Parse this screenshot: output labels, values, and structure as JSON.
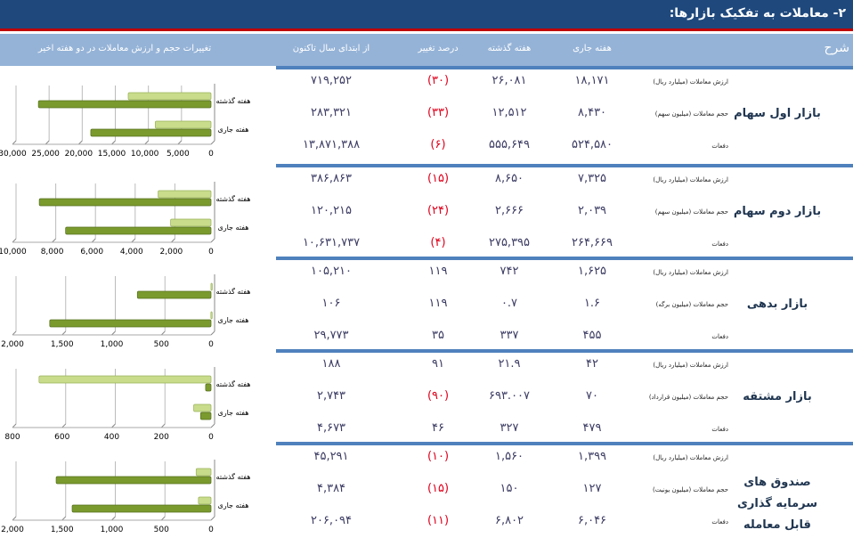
{
  "title": "۲- معاملات به تفکیک بازارها:",
  "columns": {
    "description": "شرح",
    "current_week": "هفته جاری",
    "last_week": "هفته گذشته",
    "pct_change": "درصد تغییر",
    "ytd": "از ابتدای سال تاکنون",
    "chart": "تغییرات حجم و ارزش معاملات در دو هفته اخیر"
  },
  "sections": [
    {
      "market": "بازار اول سهام",
      "rows": [
        {
          "label": "ارزش معاملات (میلیارد ریال)",
          "current": "۱۸,۱۷۱",
          "last": "۲۶,۰۸۱",
          "pct": "(۳۰)",
          "pct_neg": true,
          "ytd": "۷۱۹,۲۵۲"
        },
        {
          "label": "حجم معاملات (میلیون سهم)",
          "current": "۸,۴۳۰",
          "last": "۱۲,۵۱۲",
          "pct": "(۳۳)",
          "pct_neg": true,
          "ytd": "۲۸۳,۳۲۱"
        },
        {
          "label": "دفعات",
          "current": "۵۲۴,۵۸۰",
          "last": "۵۵۵,۶۴۹",
          "pct": "(۶)",
          "pct_neg": true,
          "ytd": "۱۳,۸۷۱,۳۸۸"
        }
      ]
    },
    {
      "market": "بازار دوم سهام",
      "rows": [
        {
          "label": "ارزش معاملات (میلیارد ریال)",
          "current": "۷,۳۲۵",
          "last": "۸,۶۵۰",
          "pct": "(۱۵)",
          "pct_neg": true,
          "ytd": "۳۸۶,۸۶۳"
        },
        {
          "label": "حجم معاملات (میلیون سهم)",
          "current": "۲,۰۳۹",
          "last": "۲,۶۶۶",
          "pct": "(۲۴)",
          "pct_neg": true,
          "ytd": "۱۲۰,۲۱۵"
        },
        {
          "label": "دفعات",
          "current": "۲۶۴,۶۶۹",
          "last": "۲۷۵,۳۹۵",
          "pct": "(۴)",
          "pct_neg": true,
          "ytd": "۱۰,۶۳۱,۷۳۷"
        }
      ]
    },
    {
      "market": "بازار بدهی",
      "rows": [
        {
          "label": "ارزش معاملات (میلیارد ریال)",
          "current": "۱,۶۲۵",
          "last": "۷۴۲",
          "pct": "۱۱۹",
          "pct_neg": false,
          "ytd": "۱۰۵,۲۱۰"
        },
        {
          "label": "حجم معاملات (میلیون برگه)",
          "current": "۱.۶",
          "last": "۰.۷",
          "pct": "۱۱۹",
          "pct_neg": false,
          "ytd": "۱۰۶"
        },
        {
          "label": "دفعات",
          "current": "۴۵۵",
          "last": "۳۳۷",
          "pct": "۳۵",
          "pct_neg": false,
          "ytd": "۲۹,۷۷۳"
        }
      ]
    },
    {
      "market": "بازار مشتقه",
      "rows": [
        {
          "label": "ارزش معاملات (میلیارد ریال)",
          "current": "۴۲",
          "last": "۲۱.۹",
          "pct": "۹۱",
          "pct_neg": false,
          "ytd": "۱۸۸"
        },
        {
          "label": "حجم معاملات (میلیون قرارداد)",
          "current": "۷۰",
          "last": "۶۹۳.۰۰۷",
          "pct": "(۹۰)",
          "pct_neg": true,
          "ytd": "۲,۷۴۳"
        },
        {
          "label": "دفعات",
          "current": "۴۷۹",
          "last": "۳۲۷",
          "pct": "۴۶",
          "pct_neg": false,
          "ytd": "۴,۶۷۳"
        }
      ]
    },
    {
      "market": "صندوق های سرمایه گذاری قابل معامله",
      "rows": [
        {
          "label": "ارزش معاملات (میلیارد ریال)",
          "current": "۱,۳۹۹",
          "last": "۱,۵۶۰",
          "pct": "(۱۰)",
          "pct_neg": true,
          "ytd": "۴۵,۲۹۱"
        },
        {
          "label": "حجم معاملات (میلیون یونیت)",
          "current": "۱۲۷",
          "last": "۱۵۰",
          "pct": "(۱۵)",
          "pct_neg": true,
          "ytd": "۴,۳۸۴"
        },
        {
          "label": "دفعات",
          "current": "۶,۰۴۶",
          "last": "۶,۸۰۲",
          "pct": "(۱۱)",
          "pct_neg": true,
          "ytd": "۲۰۶,۰۹۴"
        }
      ]
    }
  ],
  "colors": {
    "title_bg": "#1f497d",
    "header_bg": "#95b3d7",
    "separator": "#4f81bd",
    "accent_red": "#c00000",
    "bar_dark": "#7a9a2e",
    "bar_light": "#c8dc8c"
  },
  "chart_data": [
    {
      "type": "bar",
      "orientation": "horizontal",
      "categories": [
        "هفته گذشته",
        "هفته جاری"
      ],
      "series": [
        {
          "name": "volume",
          "values": [
            12512,
            8430
          ]
        },
        {
          "name": "value",
          "values": [
            26081,
            18171
          ]
        }
      ],
      "xlim": [
        0,
        30000
      ],
      "ticks": [
        "0",
        "5,000",
        "10,000",
        "15,000",
        "20,000",
        "25,000",
        "30,000"
      ]
    },
    {
      "type": "bar",
      "orientation": "horizontal",
      "categories": [
        "هفته گذشته",
        "هفته جاری"
      ],
      "series": [
        {
          "name": "volume",
          "values": [
            2666,
            2039
          ]
        },
        {
          "name": "value",
          "values": [
            8650,
            7325
          ]
        }
      ],
      "xlim": [
        0,
        10000
      ],
      "ticks": [
        "0",
        "2,000",
        "4,000",
        "6,000",
        "8,000",
        "10,000"
      ]
    },
    {
      "type": "bar",
      "orientation": "horizontal",
      "categories": [
        "هفته گذشته",
        "هفته جاری"
      ],
      "series": [
        {
          "name": "volume",
          "values": [
            0.7,
            1.6
          ]
        },
        {
          "name": "value",
          "values": [
            742,
            1625
          ]
        }
      ],
      "xlim": [
        0,
        2000
      ],
      "ticks": [
        "0",
        "500",
        "1,000",
        "1,500",
        "2,000"
      ]
    },
    {
      "type": "bar",
      "orientation": "horizontal",
      "categories": [
        "هفته گذشته",
        "هفته جاری"
      ],
      "series": [
        {
          "name": "volume",
          "values": [
            693.007,
            70
          ]
        },
        {
          "name": "value",
          "values": [
            21.9,
            42
          ]
        }
      ],
      "xlim": [
        0,
        800
      ],
      "ticks": [
        "0",
        "200",
        "400",
        "600",
        "800"
      ]
    },
    {
      "type": "bar",
      "orientation": "horizontal",
      "categories": [
        "هفته گذشته",
        "هفته جاری"
      ],
      "series": [
        {
          "name": "volume",
          "values": [
            150,
            127
          ]
        },
        {
          "name": "value",
          "values": [
            1560,
            1399
          ]
        }
      ],
      "xlim": [
        0,
        2000
      ],
      "ticks": [
        "0",
        "500",
        "1,000",
        "1,500",
        "2,000"
      ]
    }
  ]
}
